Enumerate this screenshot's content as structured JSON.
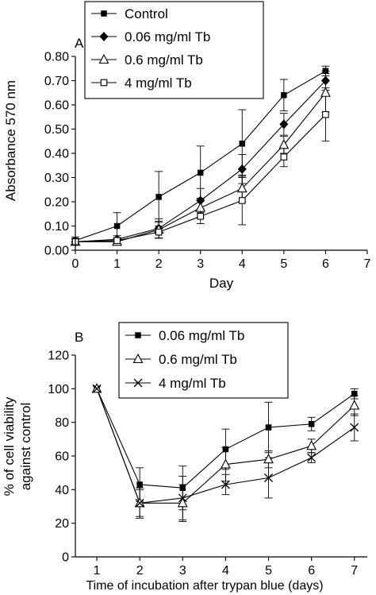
{
  "chart_data": [
    {
      "panel": "A",
      "type": "line",
      "xlabel": "Day",
      "ylabel": "Absorbance 570 nm",
      "xlim": [
        0,
        7
      ],
      "ylim": [
        0,
        0.8
      ],
      "x_ticks": [
        0,
        1,
        2,
        3,
        4,
        5,
        6,
        7
      ],
      "y_ticks": [
        "0.00",
        "0.10",
        "0.20",
        "0.30",
        "0.40",
        "0.50",
        "0.60",
        "0.70",
        "0.80"
      ],
      "legend_position": "top",
      "series": [
        {
          "name": "Control",
          "marker": "filled-square",
          "x": [
            0,
            1,
            2,
            3,
            4,
            5,
            6
          ],
          "y": [
            0.04,
            0.1,
            0.22,
            0.32,
            0.44,
            0.64,
            0.74
          ],
          "err": [
            0.015,
            0.055,
            0.105,
            0.11,
            0.14,
            0.065,
            0.02
          ]
        },
        {
          "name": "0.06 mg/ml Tb",
          "marker": "filled-diamond",
          "x": [
            0,
            1,
            2,
            3,
            4,
            5,
            6
          ],
          "y": [
            0.035,
            0.045,
            0.09,
            0.205,
            0.335,
            0.52,
            0.7
          ],
          "err": [
            0.012,
            0.015,
            0.04,
            0.05,
            0.06,
            0.045,
            0.04
          ]
        },
        {
          "name": "0.6 mg/ml Tb",
          "marker": "open-triangle",
          "x": [
            0,
            1,
            2,
            3,
            4,
            5,
            6
          ],
          "y": [
            0.035,
            0.035,
            0.085,
            0.175,
            0.255,
            0.435,
            0.65
          ],
          "err": [
            0.012,
            0.012,
            0.035,
            0.04,
            0.055,
            0.035,
            0.08
          ]
        },
        {
          "name": "4 mg/ml Tb",
          "marker": "open-square",
          "x": [
            0,
            1,
            2,
            3,
            4,
            5,
            6
          ],
          "y": [
            0.035,
            0.04,
            0.075,
            0.14,
            0.205,
            0.385,
            0.56
          ],
          "err": [
            0.012,
            0.012,
            0.025,
            0.03,
            0.1,
            0.04,
            0.11
          ]
        }
      ]
    },
    {
      "panel": "B",
      "type": "line",
      "xlabel": "Time of incubation after trypan blue (days)",
      "ylabel_line1": "% of cell viability",
      "ylabel_line2": "against control",
      "xlim": [
        0.5,
        7.3
      ],
      "ylim": [
        0,
        120
      ],
      "x_ticks": [
        1,
        2,
        3,
        4,
        5,
        6,
        7
      ],
      "y_ticks": [
        "0",
        "20",
        "40",
        "60",
        "80",
        "100",
        "120"
      ],
      "legend_position": "top",
      "series": [
        {
          "name": "0.06 mg/ml Tb",
          "marker": "filled-square",
          "x": [
            1,
            2,
            3,
            4,
            5,
            6,
            7
          ],
          "y": [
            100,
            43,
            41,
            64,
            77,
            79,
            97
          ],
          "err": [
            1.5,
            10,
            13,
            12,
            15,
            4,
            3
          ]
        },
        {
          "name": "0.6 mg/ml Tb",
          "marker": "open-triangle",
          "x": [
            1,
            2,
            3,
            4,
            5,
            6,
            7
          ],
          "y": [
            100,
            32,
            32,
            55,
            58,
            66,
            90
          ],
          "err": [
            1.5,
            8,
            11,
            10,
            5,
            4,
            6
          ]
        },
        {
          "name": "4 mg/ml Tb",
          "marker": "cross",
          "x": [
            1,
            2,
            3,
            4,
            5,
            6,
            7
          ],
          "y": [
            100,
            32,
            35,
            43,
            47,
            59,
            77
          ],
          "err": [
            1.5,
            9,
            13,
            6,
            12,
            3,
            8
          ]
        }
      ]
    }
  ]
}
